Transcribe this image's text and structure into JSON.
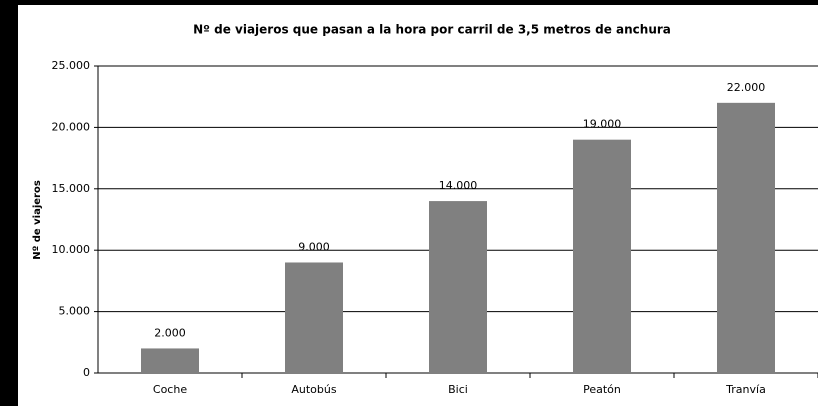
{
  "chart_data": {
    "type": "bar",
    "title": "Nº de viajeros que pasan a la hora por carril de 3,5 metros de anchura",
    "y_label": "Nº de viajeros",
    "categories": [
      "Coche",
      "Autobús",
      "Bici",
      "Peatón",
      "Tranvía"
    ],
    "values": [
      2000,
      9000,
      14000,
      19000,
      22000
    ],
    "value_labels": [
      "2.000",
      "9.000",
      "14.000",
      "19.000",
      "22.000"
    ],
    "color": "#808080",
    "ylim": [
      0,
      25000
    ],
    "yticks": [
      {
        "value": 0,
        "label": "0"
      },
      {
        "value": 5000,
        "label": "5.000"
      },
      {
        "value": 10000,
        "label": "10.000"
      },
      {
        "value": 15000,
        "label": "15.000"
      },
      {
        "value": 20000,
        "label": "20.000"
      },
      {
        "value": 25000,
        "label": "25.000"
      }
    ],
    "grid": true
  }
}
